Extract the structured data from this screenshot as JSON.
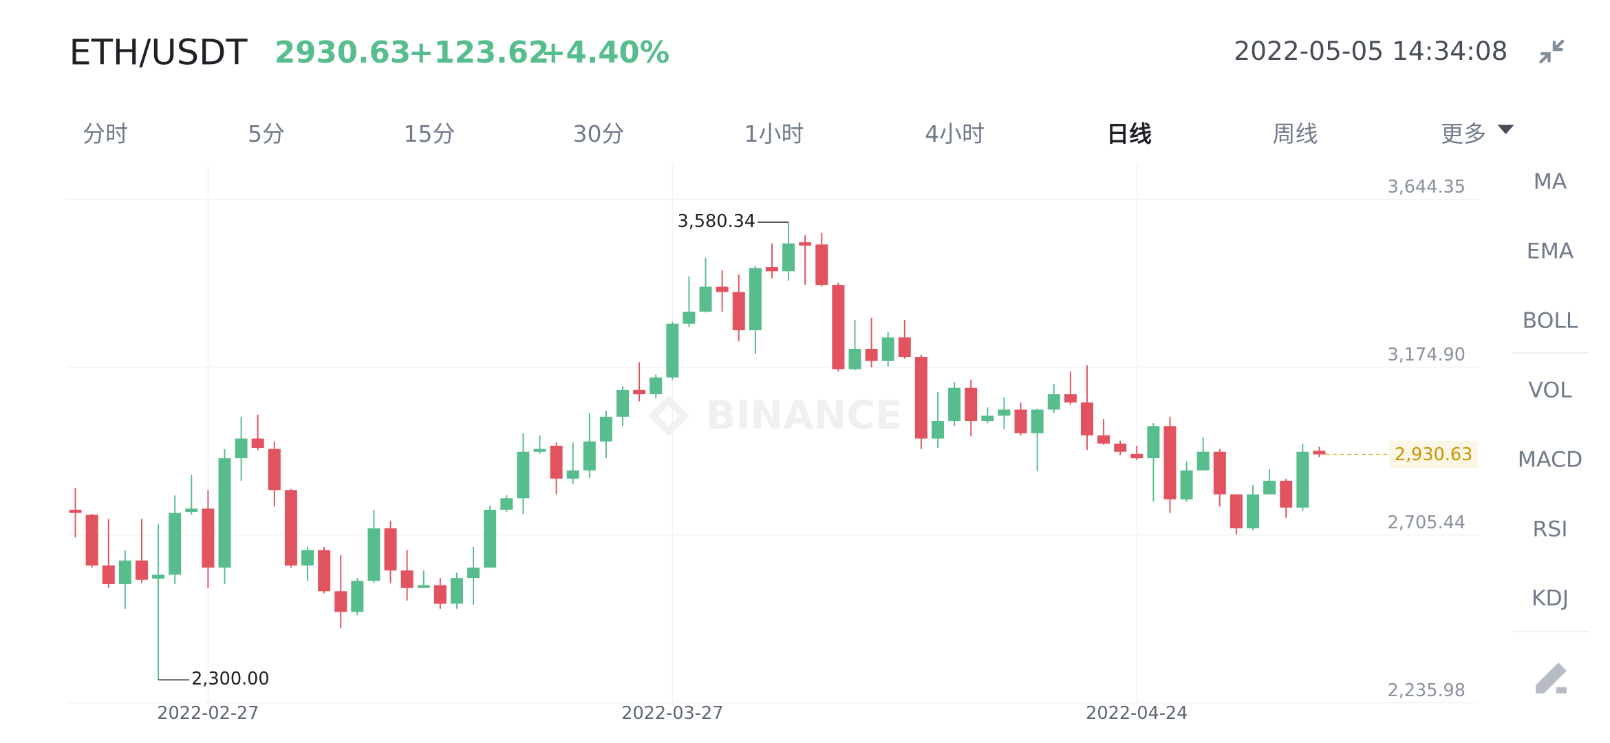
{
  "header": {
    "pair": "ETH/USDT",
    "price": "2930.63",
    "change": "+123.62",
    "change_pct": "+4.40%",
    "time": "2022-05-05 14:34:08"
  },
  "tabs": [
    {
      "label": "分时",
      "active": false
    },
    {
      "label": "5分",
      "active": false
    },
    {
      "label": "15分",
      "active": false
    },
    {
      "label": "30分",
      "active": false
    },
    {
      "label": "1小时",
      "active": false
    },
    {
      "label": "4小时",
      "active": false
    },
    {
      "label": "日线",
      "active": true
    },
    {
      "label": "周线",
      "active": false
    },
    {
      "label": "更多",
      "active": false
    }
  ],
  "indicators": [
    "MA",
    "EMA",
    "BOLL",
    "VOL",
    "MACD",
    "RSI",
    "KDJ"
  ],
  "watermark": "BINANCE",
  "chart_data": {
    "type": "candlestick",
    "categories": [
      null,
      null,
      null,
      null,
      null,
      null,
      null,
      null,
      "2022-02-27",
      null,
      null,
      null,
      null,
      null,
      null,
      null,
      null,
      null,
      null,
      null,
      null,
      null,
      null,
      null,
      null,
      null,
      null,
      null,
      null,
      null,
      null,
      null,
      null,
      null,
      null,
      null,
      "2022-03-27",
      null,
      null,
      null,
      null,
      null,
      null,
      null,
      null,
      null,
      null,
      null,
      null,
      null,
      null,
      null,
      null,
      null,
      null,
      null,
      null,
      null,
      null,
      null,
      null,
      null,
      null,
      null,
      "2022-04-24",
      null,
      null,
      null,
      null,
      null,
      null,
      null,
      null,
      null,
      null,
      null
    ],
    "open": [
      2776,
      2762,
      2620,
      2568,
      2634,
      2583,
      2594,
      2770,
      2779,
      2614,
      2920,
      2975,
      2946,
      2831,
      2620,
      2663,
      2548,
      2490,
      2577,
      2724,
      2606,
      2557,
      2565,
      2513,
      2585,
      2614,
      2776,
      2808,
      2938,
      2955,
      2863,
      2886,
      2967,
      3036,
      3111,
      3099,
      3146,
      3296,
      3330,
      3400,
      3385,
      3278,
      3455,
      3443,
      3524,
      3518,
      3405,
      3169,
      3226,
      3192,
      3258,
      3203,
      2975,
      3024,
      3117,
      3024,
      3039,
      3056,
      2990,
      3056,
      3099,
      3076,
      2984,
      2961,
      2932,
      2920,
      3010,
      2805,
      2886,
      2938,
      2819,
      2724,
      2819,
      2857,
      2782,
      2941
    ],
    "high": [
      2837,
      2764,
      2750,
      2663,
      2750,
      2736,
      2816,
      2874,
      2831,
      2946,
      3036,
      3042,
      2967,
      2834,
      2672,
      2672,
      2649,
      2585,
      2776,
      2744,
      2663,
      2606,
      2585,
      2600,
      2672,
      2788,
      2816,
      2990,
      2984,
      2964,
      2964,
      3047,
      3053,
      3122,
      3189,
      3154,
      3302,
      3429,
      3481,
      3446,
      3434,
      3458,
      3521,
      3580.34,
      3544,
      3550,
      3411,
      3307,
      3313,
      3273,
      3307,
      3209,
      3105,
      3134,
      3140,
      3062,
      3091,
      3076,
      3059,
      3128,
      3163,
      3180,
      3030,
      2969,
      2955,
      3018,
      3036,
      2912,
      2978,
      2946,
      2819,
      2845,
      2889,
      2863,
      2961,
      2952
    ],
    "low": [
      2698,
      2614,
      2557,
      2499,
      2571,
      2300,
      2568,
      2762,
      2557,
      2568,
      2857,
      2943,
      2785,
      2614,
      2577,
      2542,
      2444,
      2481,
      2571,
      2571,
      2522,
      2557,
      2499,
      2499,
      2510,
      2614,
      2770,
      2764,
      2932,
      2819,
      2848,
      2865,
      2920,
      3010,
      3079,
      3088,
      3140,
      3287,
      3328,
      3330,
      3247,
      3212,
      3423,
      3417,
      3405,
      3400,
      3163,
      3166,
      3174,
      3177,
      3198,
      2946,
      2949,
      3010,
      2981,
      3018,
      3001,
      2984,
      2883,
      3047,
      3070,
      2943,
      2958,
      2929,
      2915,
      2799,
      2767,
      2799,
      2886,
      2785,
      2707,
      2718,
      2819,
      2753,
      2773,
      2923
    ],
    "close": [
      2767,
      2620,
      2568,
      2634,
      2580,
      2594,
      2767,
      2779,
      2614,
      2920,
      2975,
      2949,
      2831,
      2620,
      2663,
      2548,
      2490,
      2577,
      2724,
      2606,
      2557,
      2565,
      2513,
      2585,
      2614,
      2776,
      2808,
      2938,
      2946,
      2863,
      2886,
      2967,
      3036,
      3111,
      3099,
      3146,
      3296,
      3330,
      3400,
      3385,
      3278,
      3452,
      3443,
      3521,
      3515,
      3405,
      3169,
      3226,
      3192,
      3258,
      3203,
      2975,
      3024,
      3117,
      3024,
      3039,
      3056,
      2990,
      3056,
      3099,
      3076,
      2984,
      2961,
      2938,
      2920,
      3010,
      2805,
      2886,
      2938,
      2819,
      2724,
      2819,
      2857,
      2782,
      2938,
      2930.63
    ],
    "up_color": "#58bd8c",
    "down_color": "#e0535f",
    "ylim": [
      2235.98,
      3740
    ],
    "yticks": [
      {
        "value": 2235.98,
        "label": "2,235.98"
      },
      {
        "value": 2705.44,
        "label": "2,705.44"
      },
      {
        "value": 3174.9,
        "label": "3,174.90"
      },
      {
        "value": 3644.35,
        "label": "3,644.35"
      }
    ],
    "grid": true,
    "high_label": {
      "value": 3580.34,
      "label": "3,580.34"
    },
    "low_label": {
      "value": 2300,
      "label": "2,300.00"
    },
    "last_price": {
      "value": 2930.63,
      "label": "2,930.63"
    }
  }
}
